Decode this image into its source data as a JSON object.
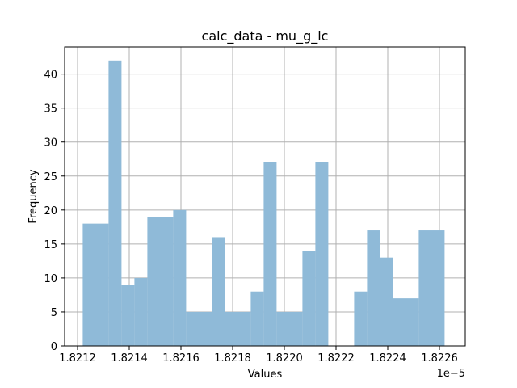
{
  "chart_data": {
    "type": "bar",
    "title": "calc_data - mu_g_lc",
    "xlabel": "Values",
    "ylabel": "Frequency",
    "x_offset_label": "1e−5",
    "bins": [
      {
        "start": 1.82122,
        "end": 1.82132,
        "count": 18
      },
      {
        "start": 1.82132,
        "end": 1.82137,
        "count": 42
      },
      {
        "start": 1.82137,
        "end": 1.82142,
        "count": 9
      },
      {
        "start": 1.82142,
        "end": 1.82147,
        "count": 10
      },
      {
        "start": 1.82147,
        "end": 1.82157,
        "count": 19
      },
      {
        "start": 1.82157,
        "end": 1.82162,
        "count": 20
      },
      {
        "start": 1.82162,
        "end": 1.82172,
        "count": 5
      },
      {
        "start": 1.82172,
        "end": 1.82177,
        "count": 16
      },
      {
        "start": 1.82177,
        "end": 1.82187,
        "count": 5
      },
      {
        "start": 1.82187,
        "end": 1.82192,
        "count": 8
      },
      {
        "start": 1.82192,
        "end": 1.82197,
        "count": 27
      },
      {
        "start": 1.82197,
        "end": 1.82207,
        "count": 5
      },
      {
        "start": 1.82207,
        "end": 1.82212,
        "count": 14
      },
      {
        "start": 1.82212,
        "end": 1.82217,
        "count": 27
      },
      {
        "start": 1.82217,
        "end": 1.82227,
        "count": 0
      },
      {
        "start": 1.82227,
        "end": 1.82232,
        "count": 8
      },
      {
        "start": 1.82232,
        "end": 1.82237,
        "count": 17
      },
      {
        "start": 1.82237,
        "end": 1.82242,
        "count": 13
      },
      {
        "start": 1.82242,
        "end": 1.82252,
        "count": 7
      },
      {
        "start": 1.82252,
        "end": 1.82262,
        "count": 17
      }
    ],
    "xlim": [
      1.82115,
      1.8227
    ],
    "ylim": [
      0,
      44
    ],
    "x_ticks": [
      {
        "value": 1.8212,
        "label": "1.8212"
      },
      {
        "value": 1.8214,
        "label": "1.8214"
      },
      {
        "value": 1.8216,
        "label": "1.8216"
      },
      {
        "value": 1.8218,
        "label": "1.8218"
      },
      {
        "value": 1.822,
        "label": "1.8220"
      },
      {
        "value": 1.8222,
        "label": "1.8222"
      },
      {
        "value": 1.8224,
        "label": "1.8224"
      },
      {
        "value": 1.8226,
        "label": "1.8226"
      }
    ],
    "y_ticks": [
      {
        "value": 0,
        "label": "0"
      },
      {
        "value": 5,
        "label": "5"
      },
      {
        "value": 10,
        "label": "10"
      },
      {
        "value": 15,
        "label": "15"
      },
      {
        "value": 20,
        "label": "20"
      },
      {
        "value": 25,
        "label": "25"
      },
      {
        "value": 30,
        "label": "30"
      },
      {
        "value": 35,
        "label": "35"
      },
      {
        "value": 40,
        "label": "40"
      }
    ],
    "grid": true,
    "bar_color": "#8fbad8",
    "grid_color": "#b0b0b0"
  }
}
